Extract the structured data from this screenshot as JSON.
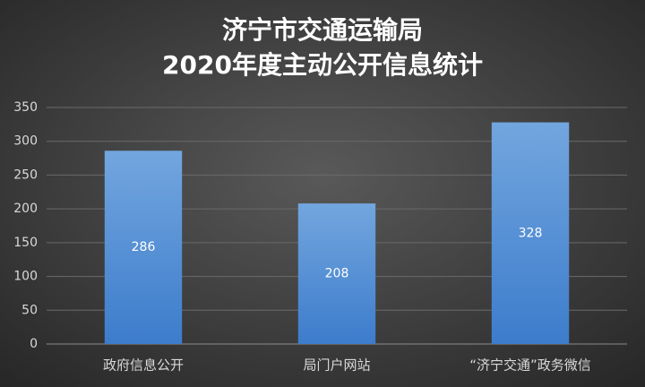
{
  "chart_data": {
    "type": "bar",
    "title": [
      "济宁市交通运输局",
      "2020年度主动公开信息统计"
    ],
    "categories": [
      "政府信息公开",
      "局门户网站",
      "“济宁交通”政务微信"
    ],
    "values": [
      286,
      208,
      328
    ],
    "color": "#5b9bd5",
    "ylim": [
      0,
      350
    ],
    "yticks": [
      0,
      50,
      100,
      150,
      200,
      250,
      300,
      350
    ],
    "grid": true
  }
}
